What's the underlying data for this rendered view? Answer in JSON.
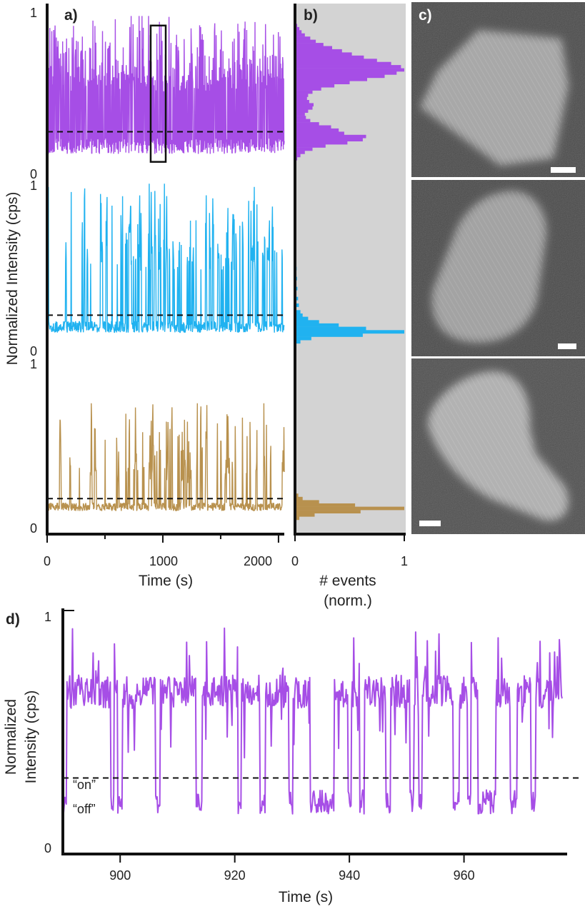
{
  "chart_data": [
    {
      "id": "a",
      "type": "line",
      "panel_label": "a)",
      "ylabel": "Normalized Intensity (cps)",
      "xlabel": "Time (s)",
      "xlim": [
        0,
        2050
      ],
      "xticks": [
        "0",
        "1000",
        "2000"
      ],
      "subplots": [
        {
          "name": "",
          "color": "#a64ee6",
          "ylim": [
            0,
            1
          ],
          "yticks": [
            "0",
            "1"
          ],
          "threshold": 0.25,
          "baseline": 0.16,
          "on_level": 0.55,
          "spike_max": 0.98,
          "noise": 0.05,
          "activity": [
            [
              0,
              2050,
              0.65
            ]
          ],
          "highlight_box": {
            "x": [
              895,
              1025
            ],
            "y": [
              0.06,
              0.92
            ]
          }
        },
        {
          "name": "",
          "color": "#20b2f0",
          "ylim": [
            0,
            1
          ],
          "yticks": [
            "0",
            "1"
          ],
          "threshold": 0.2,
          "baseline": 0.13,
          "on_level": 0.5,
          "spike_max": 0.99,
          "noise": 0.035,
          "activity": [
            [
              0,
              120,
              0.02
            ],
            [
              120,
              550,
              0.05
            ],
            [
              550,
              2050,
              0.17
            ]
          ]
        },
        {
          "name": "",
          "color": "#b8914e",
          "ylim": [
            0,
            1
          ],
          "yticks": [
            "0",
            "1"
          ],
          "threshold": 0.16,
          "baseline": 0.11,
          "on_level": 0.3,
          "spike_max": 0.74,
          "noise": 0.025,
          "activity": [
            [
              0,
              100,
              0.02
            ],
            [
              100,
              600,
              0.05
            ],
            [
              600,
              1350,
              0.2
            ],
            [
              1350,
              2050,
              0.05
            ]
          ]
        }
      ]
    },
    {
      "id": "b",
      "type": "bar",
      "orientation": "horizontal",
      "panel_label": "b)",
      "xlabel": "# events",
      "xlabel_line2": "(norm.)",
      "xlim": [
        0,
        1
      ],
      "xticks": [
        "0",
        "1"
      ],
      "background": "#d3d3d3",
      "histograms": [
        {
          "color": "#a64ee6",
          "bins": [
            [
              0.94,
              0.006
            ],
            [
              0.92,
              0.02
            ],
            [
              0.9,
              0.04
            ],
            [
              0.88,
              0.06
            ],
            [
              0.86,
              0.09
            ],
            [
              0.84,
              0.14
            ],
            [
              0.82,
              0.19
            ],
            [
              0.8,
              0.26
            ],
            [
              0.78,
              0.34
            ],
            [
              0.76,
              0.43
            ],
            [
              0.74,
              0.52
            ],
            [
              0.72,
              0.63
            ],
            [
              0.7,
              0.75
            ],
            [
              0.68,
              0.88
            ],
            [
              0.66,
              0.97
            ],
            [
              0.64,
              1.0
            ],
            [
              0.62,
              0.93
            ],
            [
              0.6,
              0.82
            ],
            [
              0.58,
              0.66
            ],
            [
              0.56,
              0.5
            ],
            [
              0.54,
              0.36
            ],
            [
              0.52,
              0.24
            ],
            [
              0.5,
              0.16
            ],
            [
              0.48,
              0.12
            ],
            [
              0.46,
              0.11
            ],
            [
              0.44,
              0.13
            ],
            [
              0.42,
              0.17
            ],
            [
              0.4,
              0.16
            ],
            [
              0.38,
              0.12
            ],
            [
              0.36,
              0.09
            ],
            [
              0.34,
              0.1
            ],
            [
              0.32,
              0.14
            ],
            [
              0.3,
              0.22
            ],
            [
              0.28,
              0.33
            ],
            [
              0.26,
              0.4
            ],
            [
              0.24,
              0.45
            ],
            [
              0.22,
              0.65
            ],
            [
              0.2,
              0.62
            ],
            [
              0.18,
              0.48
            ],
            [
              0.16,
              0.28
            ],
            [
              0.14,
              0.16
            ],
            [
              0.12,
              0.09
            ],
            [
              0.1,
              0.05
            ],
            [
              0.08,
              0.02
            ]
          ]
        },
        {
          "color": "#20b2f0",
          "bins": [
            [
              0.72,
              0.005
            ],
            [
              0.66,
              0.008
            ],
            [
              0.6,
              0.01
            ],
            [
              0.54,
              0.012
            ],
            [
              0.48,
              0.015
            ],
            [
              0.42,
              0.018
            ],
            [
              0.36,
              0.022
            ],
            [
              0.3,
              0.028
            ],
            [
              0.26,
              0.035
            ],
            [
              0.22,
              0.05
            ],
            [
              0.2,
              0.07
            ],
            [
              0.18,
              0.12
            ],
            [
              0.16,
              0.22
            ],
            [
              0.14,
              0.4
            ],
            [
              0.12,
              0.65
            ],
            [
              0.1,
              1.0
            ],
            [
              0.08,
              0.62
            ],
            [
              0.06,
              0.15
            ],
            [
              0.04,
              0.05
            ]
          ]
        },
        {
          "color": "#b8914e",
          "bins": [
            [
              0.2,
              0.012
            ],
            [
              0.18,
              0.03
            ],
            [
              0.16,
              0.07
            ],
            [
              0.14,
              0.22
            ],
            [
              0.12,
              0.55
            ],
            [
              0.1,
              1.0
            ],
            [
              0.08,
              0.6
            ],
            [
              0.06,
              0.18
            ],
            [
              0.04,
              0.04
            ]
          ]
        }
      ]
    },
    {
      "id": "d",
      "type": "line",
      "panel_label": "d)",
      "ylabel": "Normalized",
      "ylabel_line2": "Intensity (cps)",
      "xlabel": "Time (s)",
      "xlim": [
        890,
        978
      ],
      "xticks": [
        900,
        920,
        940,
        960
      ],
      "ylim": [
        0,
        1
      ],
      "yticks": [
        "0",
        "1"
      ],
      "color": "#a64ee6",
      "threshold": 0.3,
      "threshold_labels": [
        "“on”",
        "“off”"
      ],
      "off_intervals": [
        [
          890.0,
          890.6
        ],
        [
          898.3,
          898.9
        ],
        [
          899.5,
          900.4
        ],
        [
          906.2,
          907.0
        ],
        [
          913.2,
          914.3
        ],
        [
          920.6,
          921.1
        ],
        [
          924.4,
          925.3
        ],
        [
          929.4,
          930.2
        ],
        [
          933.2,
          937.4
        ],
        [
          939.7,
          940.3
        ],
        [
          941.8,
          942.6
        ],
        [
          946.3,
          947.2
        ],
        [
          950.6,
          951.3
        ],
        [
          952.1,
          952.7
        ],
        [
          958.1,
          959.2
        ],
        [
          960.6,
          961.2
        ],
        [
          962.4,
          965.6
        ],
        [
          968.1,
          969.3
        ],
        [
          971.7,
          972.5
        ]
      ],
      "on_level": 0.66,
      "off_level": 0.2,
      "noise": 0.07
    },
    {
      "id": "c",
      "type": "image",
      "panel_label": "c)",
      "images": 3
    }
  ]
}
